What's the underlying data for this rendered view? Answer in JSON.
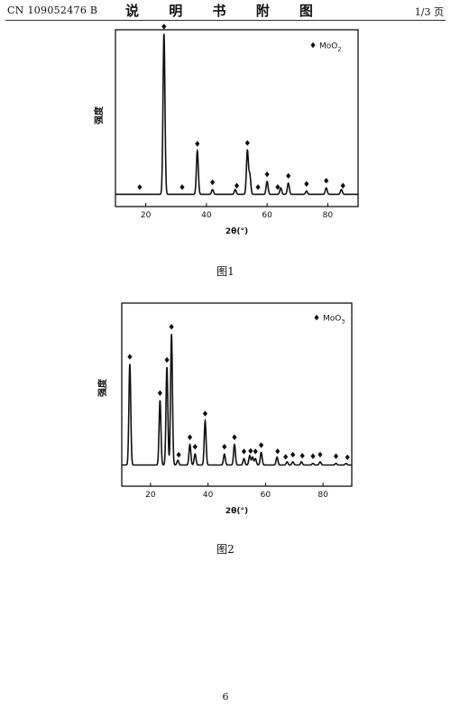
{
  "header": {
    "patent_number": "CN 109052476 B",
    "title": "说 明 书 附 图",
    "page": "1/3 页"
  },
  "figures": [
    {
      "caption": "图1"
    },
    {
      "caption": "图2"
    }
  ],
  "page_number": "6",
  "chart_data": [
    {
      "type": "line",
      "title": "",
      "xlabel": "2θ(°)",
      "ylabel": "强度",
      "xlim": [
        10,
        90
      ],
      "xticks": [
        20,
        40,
        60,
        80
      ],
      "legend": {
        "label_main": "MoO",
        "label_sub": "2",
        "position": "top-right",
        "marker": "diamond"
      },
      "baseline": 0.02,
      "peaks": [
        {
          "x": 26.0,
          "h": 1.0
        },
        {
          "x": 37.0,
          "h": 0.27
        },
        {
          "x": 42.0,
          "h": 0.03
        },
        {
          "x": 49.5,
          "h": 0.03
        },
        {
          "x": 53.5,
          "h": 0.27
        },
        {
          "x": 54.3,
          "h": 0.12
        },
        {
          "x": 60.0,
          "h": 0.08
        },
        {
          "x": 64.5,
          "h": 0.04
        },
        {
          "x": 67.0,
          "h": 0.07
        },
        {
          "x": 73.0,
          "h": 0.02
        },
        {
          "x": 79.5,
          "h": 0.04
        },
        {
          "x": 84.5,
          "h": 0.03
        }
      ],
      "markers_x": [
        18,
        26,
        32,
        37,
        42,
        50,
        53.5,
        57,
        60,
        63.5,
        67,
        73,
        79.5,
        85
      ]
    },
    {
      "type": "line",
      "title": "",
      "xlabel": "2θ(°)",
      "ylabel": "强度",
      "xlim": [
        10,
        90
      ],
      "xticks": [
        20,
        40,
        60,
        80
      ],
      "legend": {
        "label_main": "MoO",
        "label_sub": "3",
        "position": "top-right",
        "marker": "diamond"
      },
      "baseline": 0.02,
      "peaks": [
        {
          "x": 12.8,
          "h": 0.64
        },
        {
          "x": 23.3,
          "h": 0.41
        },
        {
          "x": 25.7,
          "h": 0.62
        },
        {
          "x": 27.3,
          "h": 0.83
        },
        {
          "x": 29.5,
          "h": 0.03
        },
        {
          "x": 33.7,
          "h": 0.13
        },
        {
          "x": 35.5,
          "h": 0.07
        },
        {
          "x": 39.0,
          "h": 0.28
        },
        {
          "x": 45.7,
          "h": 0.07
        },
        {
          "x": 49.2,
          "h": 0.13
        },
        {
          "x": 52.5,
          "h": 0.04
        },
        {
          "x": 54.5,
          "h": 0.06
        },
        {
          "x": 55.5,
          "h": 0.05
        },
        {
          "x": 56.5,
          "h": 0.04
        },
        {
          "x": 58.5,
          "h": 0.08
        },
        {
          "x": 64.0,
          "h": 0.05
        },
        {
          "x": 67.5,
          "h": 0.02
        },
        {
          "x": 69.5,
          "h": 0.02
        },
        {
          "x": 72.5,
          "h": 0.02
        },
        {
          "x": 76.5,
          "h": 0.01
        },
        {
          "x": 79.0,
          "h": 0.02
        },
        {
          "x": 84.5,
          "h": 0.01
        },
        {
          "x": 88.0,
          "h": 0.01
        }
      ],
      "markers_x": [
        12.8,
        23.3,
        25.7,
        27.3,
        29.8,
        33.7,
        35.5,
        39.0,
        45.7,
        49.2,
        52.5,
        54.8,
        56.5,
        58.5,
        64.2,
        67.0,
        69.5,
        72.8,
        76.5,
        79.0,
        84.5,
        88.5
      ]
    }
  ]
}
